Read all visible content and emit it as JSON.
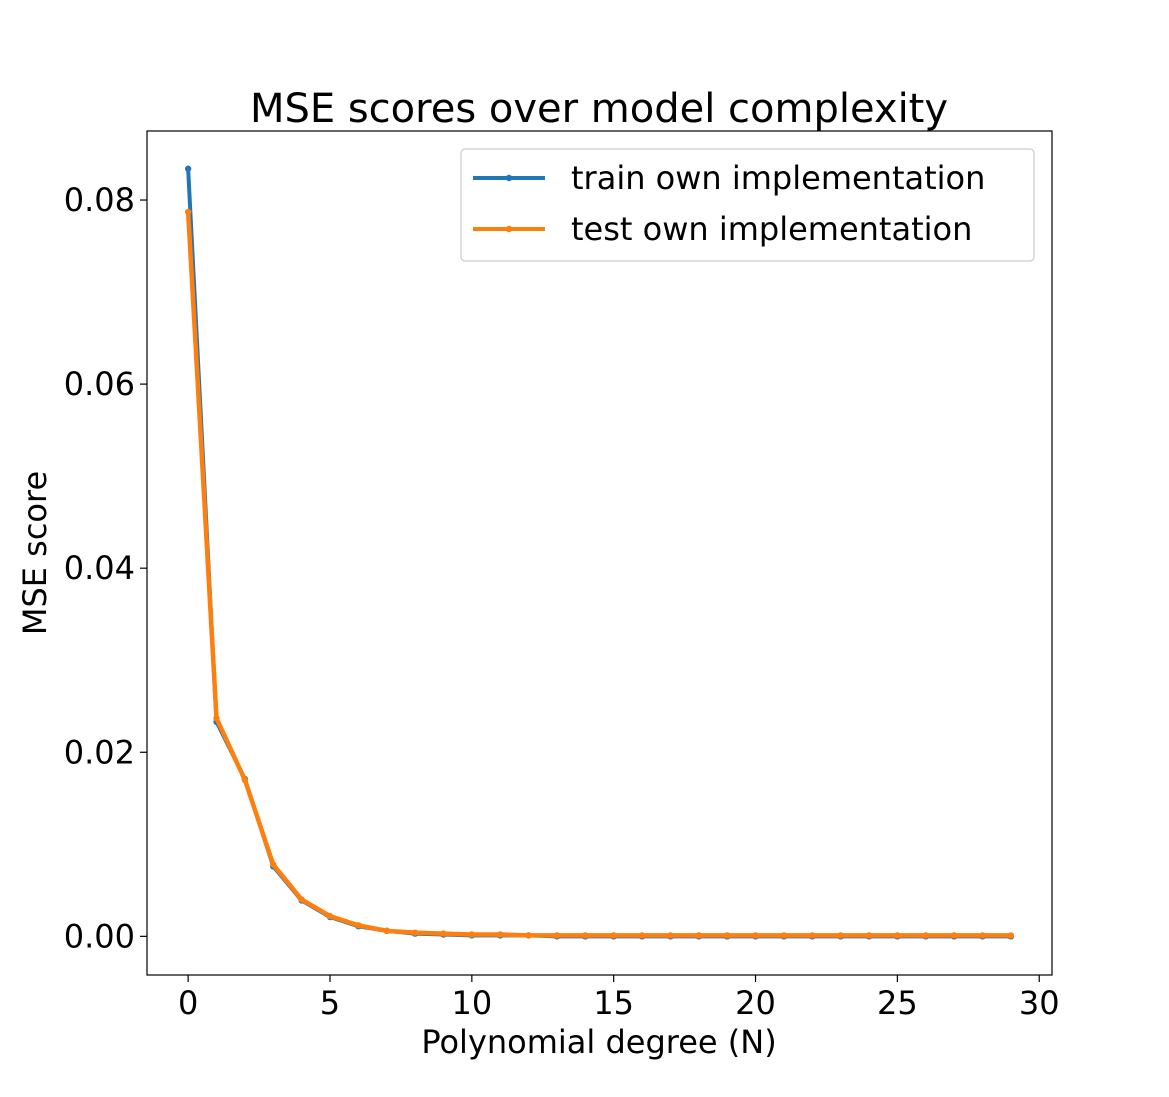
{
  "chart_data": {
    "type": "line",
    "title": "MSE scores over model complexity",
    "xlabel": "Polynomial degree (N)",
    "ylabel": "MSE score",
    "xlim": [
      -1.45,
      30.45
    ],
    "ylim": [
      -0.0042,
      0.0875
    ],
    "xticks": [
      0,
      5,
      10,
      15,
      20,
      25,
      30
    ],
    "yticks": [
      0.0,
      0.02,
      0.04,
      0.06,
      0.08
    ],
    "xtick_labels": [
      "0",
      "5",
      "10",
      "15",
      "20",
      "25",
      "30"
    ],
    "ytick_labels": [
      "0.00",
      "0.02",
      "0.04",
      "0.06",
      "0.08"
    ],
    "grid": false,
    "legend_position": "upper right",
    "x": [
      0,
      1,
      2,
      3,
      4,
      5,
      6,
      7,
      8,
      9,
      10,
      11,
      12,
      13,
      14,
      15,
      16,
      17,
      18,
      19,
      20,
      21,
      22,
      23,
      24,
      25,
      26,
      27,
      28,
      29
    ],
    "series": [
      {
        "name": "train own implementation",
        "color": "#1f77b4",
        "values": [
          0.0834,
          0.0233,
          0.0171,
          0.0076,
          0.0039,
          0.0021,
          0.0011,
          0.0006,
          0.0003,
          0.0002,
          0.0001,
          0.0001,
          0.0001,
          0.0,
          0.0,
          0.0,
          0.0,
          0.0,
          0.0,
          0.0,
          0.0,
          0.0,
          0.0,
          0.0,
          0.0,
          0.0,
          0.0,
          0.0,
          0.0,
          0.0
        ]
      },
      {
        "name": "test own implementation",
        "color": "#ff7f0e",
        "values": [
          0.0787,
          0.0237,
          0.017,
          0.0078,
          0.004,
          0.0022,
          0.0012,
          0.0006,
          0.0004,
          0.0003,
          0.0002,
          0.0002,
          0.0001,
          0.0001,
          0.0001,
          0.0001,
          0.0001,
          0.0001,
          0.0001,
          0.0001,
          0.0001,
          0.0001,
          0.0001,
          0.0001,
          0.0001,
          0.0001,
          0.0001,
          0.0001,
          0.0001,
          0.0001
        ]
      }
    ]
  }
}
